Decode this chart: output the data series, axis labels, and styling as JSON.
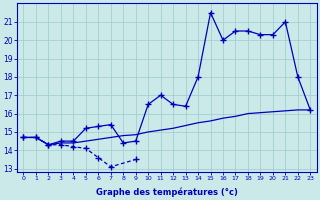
{
  "xlabel": "Graphe des températures (°c)",
  "x_labels": [
    "0",
    "1",
    "2",
    "3",
    "4",
    "5",
    "6",
    "7",
    "8",
    "9",
    "10",
    "11",
    "12",
    "13",
    "14",
    "15",
    "16",
    "17",
    "18",
    "19",
    "20",
    "21",
    "22",
    "23"
  ],
  "ylim": [
    12.8,
    22.0
  ],
  "yticks": [
    13,
    14,
    15,
    16,
    17,
    18,
    19,
    20,
    21
  ],
  "background_color": "#cce9e9",
  "grid_color": "#99cccc",
  "line_color": "#0000bb",
  "line_min": [
    14.7,
    14.7,
    14.3,
    14.3,
    14.2,
    14.1,
    13.6,
    13.1,
    null,
    13.5,
    null,
    null,
    null,
    null,
    null,
    null,
    null,
    null,
    null,
    null,
    null,
    null,
    null,
    null
  ],
  "line_mid": [
    14.7,
    14.7,
    14.3,
    14.4,
    14.4,
    14.5,
    14.6,
    14.7,
    14.8,
    14.85,
    15.0,
    15.1,
    15.2,
    15.35,
    15.5,
    15.6,
    15.75,
    15.85,
    16.0,
    16.05,
    16.1,
    16.15,
    16.2,
    16.2
  ],
  "line_max": [
    14.7,
    14.7,
    14.3,
    14.5,
    14.5,
    15.2,
    15.3,
    15.4,
    14.4,
    14.5,
    16.5,
    17.0,
    16.5,
    16.4,
    18.0,
    21.5,
    20.0,
    20.5,
    20.5,
    20.3,
    20.3,
    21.0,
    18.0,
    16.2
  ]
}
